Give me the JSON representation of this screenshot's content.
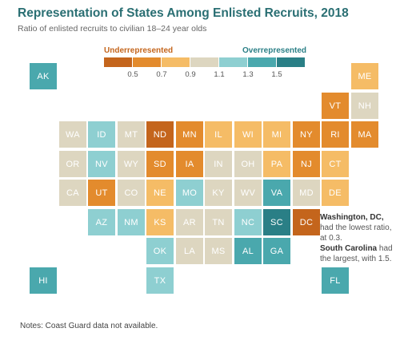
{
  "title": "Representation of States Among Enlisted Recruits, 2018",
  "subtitle": "Ratio of enlisted recruits to civilian 18–24 year olds",
  "legend": {
    "under_label": "Underrepresented",
    "over_label": "Overrepresented",
    "colors": [
      "#c4651c",
      "#e38b2d",
      "#f5bc66",
      "#ddd6c0",
      "#8ecfd1",
      "#4aa8ad",
      "#2a7f86"
    ],
    "ticks": [
      "0.5",
      "0.7",
      "0.9",
      "1.1",
      "1.3",
      "1.5"
    ]
  },
  "annotations": {
    "dc_bold": "Washington, DC,",
    "dc_text": "had the lowest ratio, at 0.3.",
    "sc_bold": "South Carolina",
    "sc_text": "had the largest, with 1.5."
  },
  "notes": "Notes: Coast Guard data not available.",
  "chart_data": {
    "type": "heatmap",
    "title": "Representation of States Among Enlisted Recruits, 2018",
    "subtitle": "Ratio of enlisted recruits to civilian 18–24 year olds",
    "scale": {
      "breaks": [
        0.5,
        0.7,
        0.9,
        1.1,
        1.3,
        1.5
      ],
      "low_label": "Underrepresented",
      "high_label": "Overrepresented"
    },
    "states": [
      {
        "abbr": "AK",
        "row": 0,
        "col": 0,
        "bin": 5
      },
      {
        "abbr": "ME",
        "row": 0,
        "col": 11,
        "bin": 2
      },
      {
        "abbr": "VT",
        "row": 1,
        "col": 10,
        "bin": 1
      },
      {
        "abbr": "NH",
        "row": 1,
        "col": 11,
        "bin": 3
      },
      {
        "abbr": "WA",
        "row": 2,
        "col": 1,
        "bin": 3
      },
      {
        "abbr": "ID",
        "row": 2,
        "col": 2,
        "bin": 4
      },
      {
        "abbr": "MT",
        "row": 2,
        "col": 3,
        "bin": 3
      },
      {
        "abbr": "ND",
        "row": 2,
        "col": 4,
        "bin": 0
      },
      {
        "abbr": "MN",
        "row": 2,
        "col": 5,
        "bin": 1
      },
      {
        "abbr": "IL",
        "row": 2,
        "col": 6,
        "bin": 2
      },
      {
        "abbr": "WI",
        "row": 2,
        "col": 7,
        "bin": 2
      },
      {
        "abbr": "MI",
        "row": 2,
        "col": 8,
        "bin": 2
      },
      {
        "abbr": "NY",
        "row": 2,
        "col": 9,
        "bin": 1
      },
      {
        "abbr": "RI",
        "row": 2,
        "col": 10,
        "bin": 1
      },
      {
        "abbr": "MA",
        "row": 2,
        "col": 11,
        "bin": 1
      },
      {
        "abbr": "OR",
        "row": 3,
        "col": 1,
        "bin": 3
      },
      {
        "abbr": "NV",
        "row": 3,
        "col": 2,
        "bin": 4
      },
      {
        "abbr": "WY",
        "row": 3,
        "col": 3,
        "bin": 3
      },
      {
        "abbr": "SD",
        "row": 3,
        "col": 4,
        "bin": 1
      },
      {
        "abbr": "IA",
        "row": 3,
        "col": 5,
        "bin": 1
      },
      {
        "abbr": "IN",
        "row": 3,
        "col": 6,
        "bin": 3
      },
      {
        "abbr": "OH",
        "row": 3,
        "col": 7,
        "bin": 3
      },
      {
        "abbr": "PA",
        "row": 3,
        "col": 8,
        "bin": 2
      },
      {
        "abbr": "NJ",
        "row": 3,
        "col": 9,
        "bin": 1
      },
      {
        "abbr": "CT",
        "row": 3,
        "col": 10,
        "bin": 2
      },
      {
        "abbr": "CA",
        "row": 4,
        "col": 1,
        "bin": 3
      },
      {
        "abbr": "UT",
        "row": 4,
        "col": 2,
        "bin": 1
      },
      {
        "abbr": "CO",
        "row": 4,
        "col": 3,
        "bin": 3
      },
      {
        "abbr": "NE",
        "row": 4,
        "col": 4,
        "bin": 2
      },
      {
        "abbr": "MO",
        "row": 4,
        "col": 5,
        "bin": 4
      },
      {
        "abbr": "KY",
        "row": 4,
        "col": 6,
        "bin": 3
      },
      {
        "abbr": "WV",
        "row": 4,
        "col": 7,
        "bin": 3
      },
      {
        "abbr": "VA",
        "row": 4,
        "col": 8,
        "bin": 5
      },
      {
        "abbr": "MD",
        "row": 4,
        "col": 9,
        "bin": 3
      },
      {
        "abbr": "DE",
        "row": 4,
        "col": 10,
        "bin": 2
      },
      {
        "abbr": "AZ",
        "row": 5,
        "col": 2,
        "bin": 4
      },
      {
        "abbr": "NM",
        "row": 5,
        "col": 3,
        "bin": 4
      },
      {
        "abbr": "KS",
        "row": 5,
        "col": 4,
        "bin": 2
      },
      {
        "abbr": "AR",
        "row": 5,
        "col": 5,
        "bin": 3
      },
      {
        "abbr": "TN",
        "row": 5,
        "col": 6,
        "bin": 3
      },
      {
        "abbr": "NC",
        "row": 5,
        "col": 7,
        "bin": 4
      },
      {
        "abbr": "SC",
        "row": 5,
        "col": 8,
        "bin": 6
      },
      {
        "abbr": "DC",
        "row": 5,
        "col": 9,
        "bin": 0
      },
      {
        "abbr": "OK",
        "row": 6,
        "col": 4,
        "bin": 4
      },
      {
        "abbr": "LA",
        "row": 6,
        "col": 5,
        "bin": 3
      },
      {
        "abbr": "MS",
        "row": 6,
        "col": 6,
        "bin": 3
      },
      {
        "abbr": "AL",
        "row": 6,
        "col": 7,
        "bin": 5
      },
      {
        "abbr": "GA",
        "row": 6,
        "col": 8,
        "bin": 5
      },
      {
        "abbr": "HI",
        "row": 7,
        "col": 0,
        "bin": 5
      },
      {
        "abbr": "TX",
        "row": 7,
        "col": 4,
        "bin": 4
      },
      {
        "abbr": "FL",
        "row": 7,
        "col": 10,
        "bin": 5
      }
    ]
  }
}
